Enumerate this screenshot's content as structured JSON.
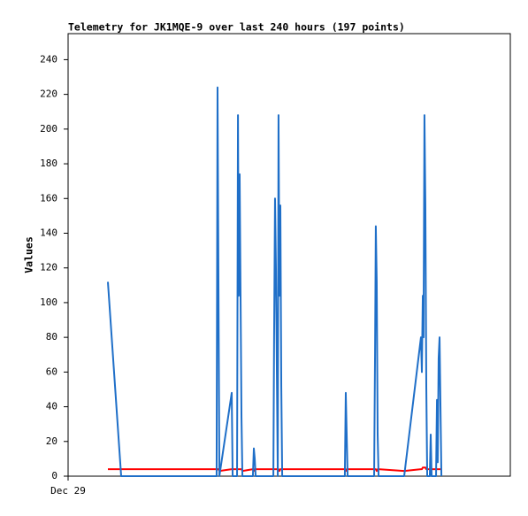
{
  "chart_data": {
    "type": "line",
    "title": "Telemetry for JK1MQE-9 over last 240 hours (197 points)",
    "y_label": "Values",
    "x": [
      21.6,
      28.8,
      80.6,
      81.1,
      81.6,
      82.1,
      88.8,
      89.3,
      91.7,
      92.2,
      92.6,
      93.1,
      93.6,
      94.1,
      94.6,
      100.3,
      100.8,
      101.3,
      101.8,
      111.4,
      111.8,
      112.3,
      112.8,
      113.3,
      113.8,
      114.2,
      114.7,
      115.2,
      115.7,
      116.2,
      150.2,
      150.7,
      151.2,
      151.7,
      166.1,
      166.6,
      167.0,
      167.5,
      168.0,
      168.5,
      182.4,
      191.5,
      192.0,
      192.5,
      192.9,
      193.4,
      193.9,
      194.4,
      194.9,
      196.3,
      196.8,
      197.3,
      199.7,
      200.2,
      200.6,
      201.1,
      201.6,
      202.1,
      202.6
    ],
    "series": [
      {
        "color": "#000000",
        "values": [
          0,
          0,
          0,
          0,
          0,
          0,
          0,
          0,
          0,
          0,
          0,
          0,
          0,
          0,
          0,
          0,
          0,
          0,
          0,
          0,
          0,
          0,
          0,
          0,
          0,
          0,
          0,
          0,
          0,
          0,
          0,
          0,
          0,
          0,
          0,
          0,
          0,
          0,
          0,
          0,
          0,
          0,
          0,
          0,
          0,
          0,
          0,
          0,
          0,
          0,
          0,
          0,
          0,
          0,
          0,
          0,
          0,
          0,
          0
        ]
      },
      {
        "color": "#ff0000",
        "values": [
          4,
          4,
          4,
          4,
          4,
          3,
          4,
          4,
          4,
          4,
          4,
          4,
          4,
          4,
          3,
          4,
          4,
          3,
          4,
          4,
          4,
          4,
          4,
          4,
          4,
          4,
          3,
          4,
          4,
          4,
          4,
          3,
          4,
          4,
          4,
          4,
          4,
          3,
          4,
          4,
          3,
          4,
          4,
          5,
          5,
          5,
          5,
          4,
          4,
          4,
          4,
          4,
          4,
          4,
          4,
          4,
          4,
          4,
          4
        ]
      },
      {
        "color": "#1f6fc8",
        "values": [
          112,
          0,
          0,
          224,
          112,
          0,
          48,
          0,
          0,
          208,
          104,
          174,
          104,
          34,
          0,
          0,
          16,
          10,
          0,
          0,
          80,
          160,
          120,
          60,
          0,
          208,
          104,
          156,
          52,
          0,
          0,
          48,
          24,
          0,
          0,
          72,
          144,
          112,
          24,
          0,
          0,
          80,
          60,
          104,
          80,
          208,
          156,
          52,
          0,
          0,
          24,
          0,
          0,
          44,
          8,
          68,
          80,
          40,
          0
        ]
      }
    ],
    "xlim": [
      0,
      240
    ],
    "xticks": [
      {
        "value": 0,
        "label": "Dec 29"
      }
    ],
    "ylim": [
      0,
      255
    ],
    "yticks": [
      0,
      20,
      40,
      60,
      80,
      100,
      120,
      140,
      160,
      180,
      200,
      220,
      240
    ]
  }
}
